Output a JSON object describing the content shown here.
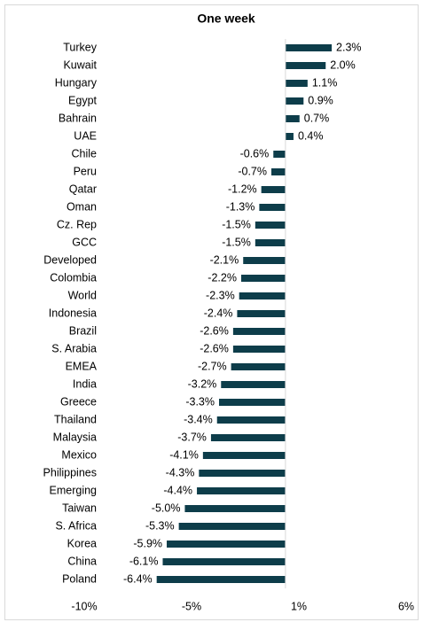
{
  "chart_data": {
    "type": "bar",
    "orientation": "horizontal",
    "title": "One week",
    "categories": [
      "Turkey",
      "Kuwait",
      "Hungary",
      "Egypt",
      "Bahrain",
      "UAE",
      "Chile",
      "Peru",
      "Qatar",
      "Oman",
      "Cz. Rep",
      "GCC",
      "Developed",
      "Colombia",
      "World",
      "Indonesia",
      "Brazil",
      "S. Arabia",
      "EMEA",
      "India",
      "Greece",
      "Thailand",
      "Malaysia",
      "Mexico",
      "Philippines",
      "Emerging",
      "Taiwan",
      "S. Africa",
      "Korea",
      "China",
      "Poland"
    ],
    "values": [
      2.3,
      2.0,
      1.1,
      0.9,
      0.7,
      0.4,
      -0.6,
      -0.7,
      -1.2,
      -1.3,
      -1.5,
      -1.5,
      -2.1,
      -2.2,
      -2.3,
      -2.4,
      -2.6,
      -2.6,
      -2.7,
      -3.2,
      -3.3,
      -3.4,
      -3.7,
      -4.1,
      -4.3,
      -4.4,
      -5.0,
      -5.3,
      -5.9,
      -6.1,
      -6.4
    ],
    "value_labels": [
      "2.3%",
      "2.0%",
      "1.1%",
      "0.9%",
      "0.7%",
      "0.4%",
      "-0.6%",
      "-0.7%",
      "-1.2%",
      "-1.3%",
      "-1.5%",
      "-1.5%",
      "-2.1%",
      "-2.2%",
      "-2.3%",
      "-2.4%",
      "-2.6%",
      "-2.6%",
      "-2.7%",
      "-3.2%",
      "-3.3%",
      "-3.4%",
      "-3.7%",
      "-4.1%",
      "-4.3%",
      "-4.4%",
      "-5.0%",
      "-5.3%",
      "-5.9%",
      "-6.1%",
      "-6.4%"
    ],
    "color": "#0d3d4a",
    "xlim": [
      -10,
      6
    ],
    "xticks": [
      {
        "value": -10,
        "label": "-10%"
      },
      {
        "value": -4.667,
        "label": "-5%"
      },
      {
        "value": 0.667,
        "label": "1%"
      },
      {
        "value": 6,
        "label": "6%"
      }
    ]
  }
}
